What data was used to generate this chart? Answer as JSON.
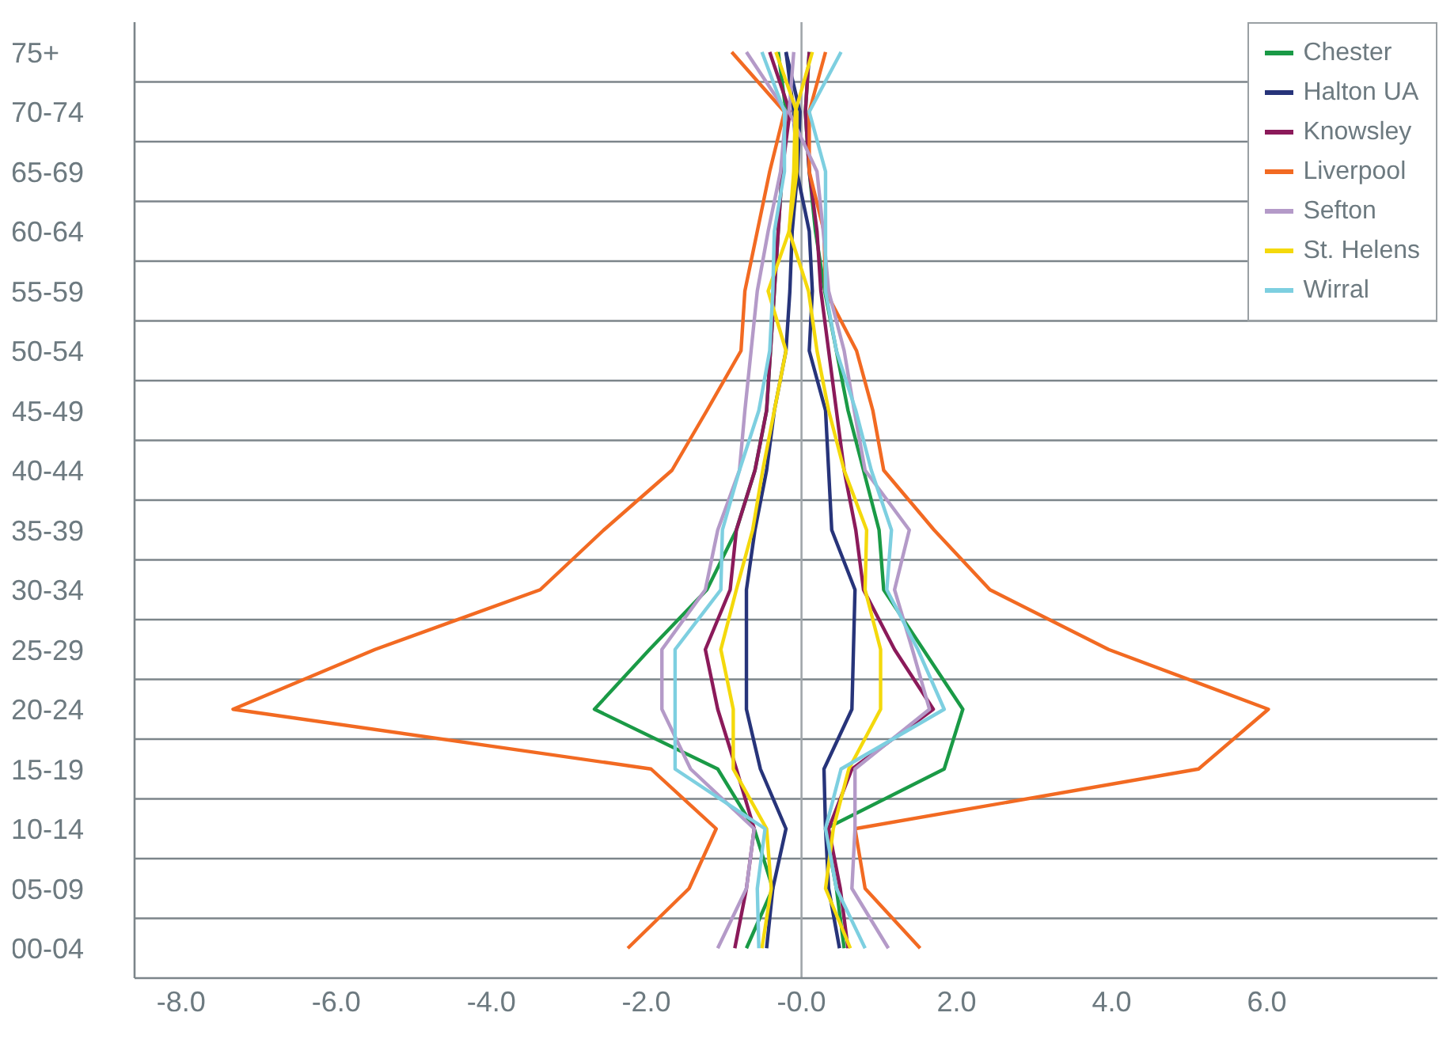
{
  "chart_data": {
    "type": "line",
    "categories": [
      "75+",
      "70-74",
      "65-69",
      "60-64",
      "55-59",
      "50-54",
      "45-49",
      "40-44",
      "35-39",
      "30-34",
      "25-29",
      "20-24",
      "15-19",
      "10-14",
      "05-09",
      "00-04"
    ],
    "series": [
      {
        "name": "Chester",
        "color": "#1a9a46",
        "values": [
          -0.3,
          -0.2,
          -0.25,
          -0.3,
          -0.35,
          -0.4,
          -0.45,
          -0.6,
          -0.84,
          -1.22,
          -1.96,
          -2.67,
          -1.08,
          -0.61,
          -0.37,
          -0.71
        ]
      },
      {
        "color": "#1a9a46",
        "values": [
          0.1,
          0.05,
          0.1,
          0.18,
          0.3,
          0.45,
          0.6,
          0.8,
          1.0,
          1.06,
          1.57,
          2.08,
          1.84,
          0.31,
          0.45,
          0.55
        ]
      },
      {
        "name": "Halton UA",
        "color": "#27347a",
        "values": [
          -0.2,
          -0.02,
          -0.05,
          -0.12,
          -0.15,
          -0.2,
          -0.35,
          -0.45,
          -0.6,
          -0.71,
          -0.71,
          -0.71,
          -0.53,
          -0.2,
          -0.37,
          -0.45
        ]
      },
      {
        "color": "#27347a",
        "values": [
          -0.2,
          -0.1,
          -0.06,
          0.1,
          0.14,
          0.1,
          0.31,
          0.35,
          0.39,
          0.69,
          0.67,
          0.65,
          0.29,
          0.31,
          0.35,
          0.49
        ]
      },
      {
        "name": "Knowsley",
        "color": "#8b1a5a",
        "values": [
          -0.41,
          -0.15,
          -0.25,
          -0.3,
          -0.35,
          -0.4,
          -0.45,
          -0.6,
          -0.84,
          -0.92,
          -1.24,
          -1.08,
          -0.84,
          -0.61,
          -0.71,
          -0.86
        ]
      },
      {
        "color": "#8b1a5a",
        "values": [
          0.1,
          0.05,
          0.1,
          0.2,
          0.25,
          0.35,
          0.45,
          0.55,
          0.7,
          0.8,
          1.2,
          1.7,
          0.65,
          0.35,
          0.5,
          0.6
        ]
      },
      {
        "name": "Liverpool",
        "color": "#f26a22",
        "values": [
          -0.9,
          -0.22,
          -0.41,
          -0.57,
          -0.73,
          -0.78,
          -1.22,
          -1.67,
          -2.55,
          -3.37,
          -5.5,
          -7.33,
          -1.94,
          -1.1,
          -1.45,
          -2.24
        ]
      },
      {
        "color": "#f26a22",
        "values": [
          0.31,
          0.1,
          0.1,
          0.29,
          0.31,
          0.71,
          0.92,
          1.06,
          1.71,
          2.43,
          3.96,
          6.02,
          5.12,
          0.69,
          0.82,
          1.53
        ]
      },
      {
        "name": "Sefton",
        "color": "#b49ac8",
        "values": [
          -0.71,
          -0.2,
          -0.27,
          -0.43,
          -0.57,
          -0.65,
          -0.73,
          -0.8,
          -1.08,
          -1.24,
          -1.8,
          -1.8,
          -1.43,
          -0.61,
          -0.71,
          -1.08
        ]
      },
      {
        "color": "#b49ac8",
        "values": [
          -0.1,
          -0.16,
          0.2,
          0.28,
          0.35,
          0.55,
          0.68,
          0.82,
          1.39,
          1.2,
          1.43,
          1.65,
          0.69,
          0.69,
          0.65,
          1.12
        ]
      },
      {
        "name": "St. Helens",
        "color": "#f4d90c",
        "values": [
          -0.33,
          -0.06,
          -0.06,
          -0.16,
          -0.43,
          -0.2,
          -0.35,
          -0.5,
          -0.63,
          -0.84,
          -1.04,
          -0.88,
          -0.88,
          -0.45,
          -0.39,
          -0.51
        ]
      },
      {
        "color": "#f4d90c",
        "values": [
          0.14,
          -0.08,
          -0.1,
          -0.16,
          0.09,
          0.2,
          0.35,
          0.55,
          0.84,
          0.82,
          1.02,
          1.02,
          0.61,
          0.41,
          0.31,
          0.63
        ]
      },
      {
        "name": "Wirral",
        "color": "#7dcfe0",
        "values": [
          -0.51,
          -0.22,
          -0.22,
          -0.35,
          -0.37,
          -0.41,
          -0.55,
          -0.8,
          -1.02,
          -1.04,
          -1.63,
          -1.63,
          -1.63,
          -0.47,
          -0.57,
          -0.55
        ]
      },
      {
        "color": "#7dcfe0",
        "values": [
          0.51,
          0.1,
          0.31,
          0.31,
          0.31,
          0.45,
          0.7,
          0.9,
          1.16,
          1.1,
          1.5,
          1.84,
          0.51,
          0.31,
          0.45,
          0.82
        ]
      }
    ],
    "xlim": [
      -8.6,
      8.2
    ],
    "xticks": [
      {
        "value": -8,
        "label": "-8.0"
      },
      {
        "value": -6,
        "label": "-6.0"
      },
      {
        "value": -4,
        "label": "-4.0"
      },
      {
        "value": -2,
        "label": "-2.0"
      },
      {
        "value": 0,
        "label": "-0.0"
      },
      {
        "value": 2,
        "label": "2.0"
      },
      {
        "value": 4,
        "label": "4.0"
      },
      {
        "value": 6,
        "label": "6.0"
      }
    ],
    "ref_lines": [
      {
        "axis": "x",
        "value": 0,
        "color": "#a0a6aa"
      }
    ],
    "orientation": "horizontal",
    "grid": "y",
    "legend": "top right",
    "marker": "none",
    "line_style": "solid"
  }
}
